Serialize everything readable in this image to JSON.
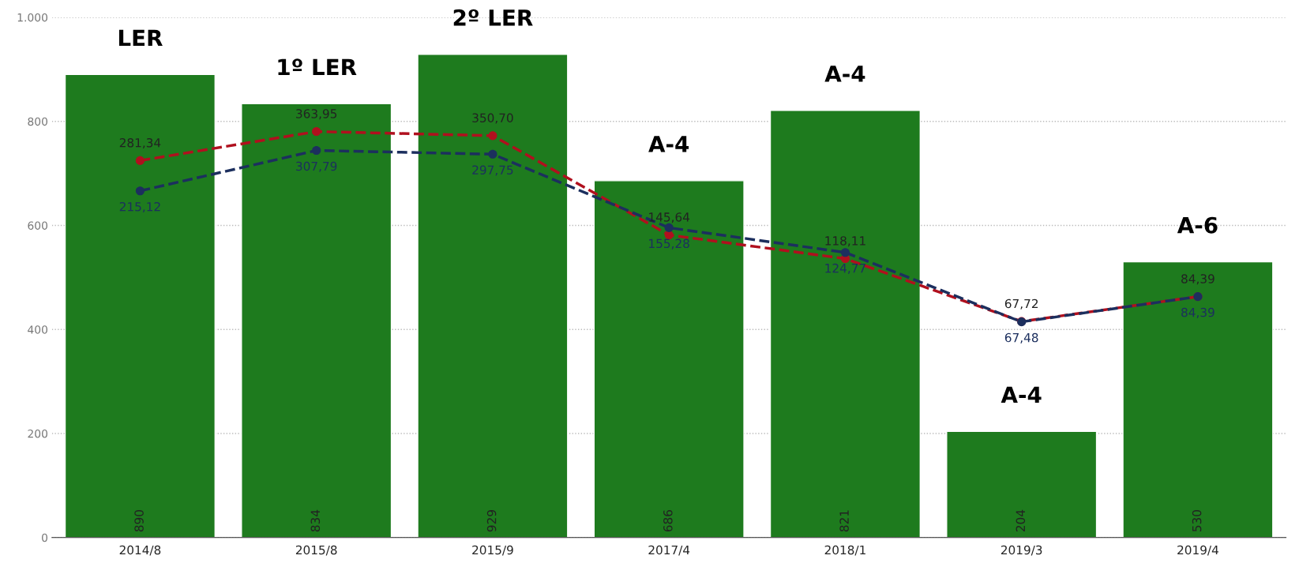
{
  "chart_data": {
    "type": "bar",
    "categories": [
      "2014/8",
      "2015/8",
      "2015/9",
      "2017/4",
      "2018/1",
      "2019/3",
      "2019/4"
    ],
    "values": [
      890,
      834,
      929,
      686,
      821,
      204,
      530
    ],
    "color": "#1e7b1e",
    "value_labels": [
      "890",
      "834",
      "929",
      "686",
      "821",
      "204",
      "530"
    ],
    "series": [
      {
        "type": "line",
        "axis": "y2",
        "color": "#b0101e",
        "values": [
          281.34,
          363.95,
          350.7,
          145.64,
          118.11,
          67.72,
          84.39
        ],
        "value_labels": [
          "281,34",
          "363,95",
          "350,70",
          "145,64",
          "118,11",
          "67,72",
          "84,39"
        ]
      },
      {
        "type": "line",
        "axis": "y2",
        "color": "#1c2f5e",
        "values": [
          215.12,
          307.79,
          297.75,
          155.28,
          124.77,
          67.48,
          84.39
        ],
        "value_labels": [
          "215,12",
          "307,79",
          "297,75",
          "155,28",
          "124,77",
          "67,48",
          "84,39"
        ]
      }
    ],
    "ylim": [
      0,
      1000
    ],
    "yticks": [
      0,
      200,
      400,
      600,
      {
        "value": 800,
        "label": "800"
      },
      {
        "value": 1000,
        "label": "1.000"
      }
    ],
    "y2lim": [
      10,
      1000
    ],
    "log": "y2",
    "grid": "y",
    "marker": "circle",
    "line_style": "dashed",
    "annotations": [
      {
        "text": "LER",
        "x": "2014/8",
        "y": 890
      },
      {
        "text": "1º LER",
        "x": "2015/8",
        "y": 834
      },
      {
        "text": "2º LER",
        "x": "2015/9",
        "y": 929
      },
      {
        "text": "A-4",
        "x": "2017/4",
        "y": 686
      },
      {
        "text": "A-4",
        "x": "2018/1",
        "y": 821
      },
      {
        "text": "A-4",
        "x": "2019/3",
        "y": 204
      },
      {
        "text": "A-6",
        "x": "2019/4",
        "y": 530
      }
    ]
  }
}
